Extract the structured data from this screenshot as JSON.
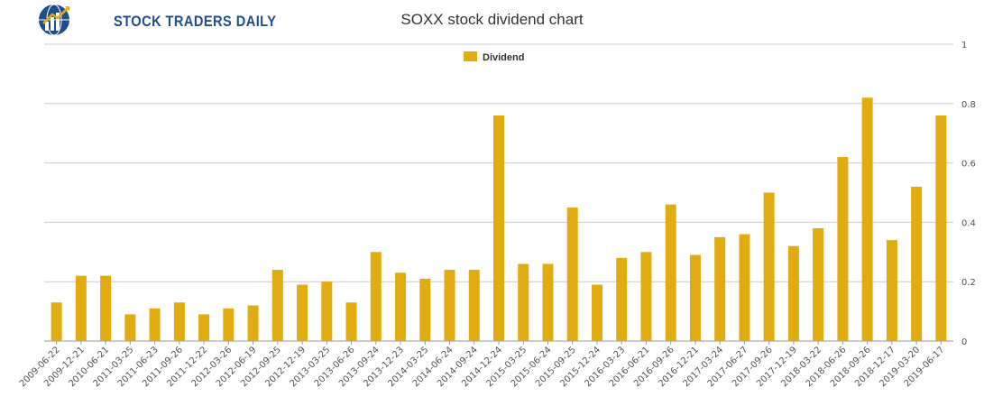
{
  "brand": {
    "name": "STOCK TRADERS DAILY"
  },
  "colors": {
    "bar": "#e0ac12",
    "brand": "#1f4e8c",
    "grid": "#cccccc"
  },
  "chart_data": {
    "type": "bar",
    "title": "SOXX stock dividend chart",
    "legend": {
      "position": "top-center",
      "entries": [
        "Dividend"
      ]
    },
    "xlabel": "",
    "ylabel": "",
    "ylim": [
      0,
      1
    ],
    "yticks": [
      "0",
      "0.2",
      "0.4",
      "0.6",
      "0.8",
      "1"
    ],
    "grid": true,
    "categories": [
      "2009-06-22",
      "2009-12-21",
      "2010-06-21",
      "2011-03-25",
      "2011-06-23",
      "2011-09-26",
      "2011-12-22",
      "2012-03-26",
      "2012-06-19",
      "2012-09-25",
      "2012-12-19",
      "2013-03-25",
      "2013-06-26",
      "2013-09-24",
      "2013-12-23",
      "2014-03-25",
      "2014-06-24",
      "2014-09-24",
      "2014-12-24",
      "2015-03-25",
      "2015-06-24",
      "2015-09-25",
      "2015-12-24",
      "2016-03-23",
      "2016-06-21",
      "2016-09-26",
      "2016-12-21",
      "2017-03-24",
      "2017-06-27",
      "2017-09-26",
      "2017-12-19",
      "2018-03-22",
      "2018-06-26",
      "2018-09-26",
      "2018-12-17",
      "2019-03-20",
      "2019-06-17"
    ],
    "series": [
      {
        "name": "Dividend",
        "values": [
          0.13,
          0.22,
          0.22,
          0.09,
          0.11,
          0.13,
          0.09,
          0.11,
          0.12,
          0.24,
          0.19,
          0.2,
          0.13,
          0.3,
          0.23,
          0.21,
          0.24,
          0.24,
          0.76,
          0.26,
          0.26,
          0.45,
          0.19,
          0.28,
          0.3,
          0.46,
          0.29,
          0.35,
          0.36,
          0.5,
          0.32,
          0.38,
          0.62,
          0.82,
          0.34,
          0.52,
          0.76
        ]
      }
    ]
  }
}
